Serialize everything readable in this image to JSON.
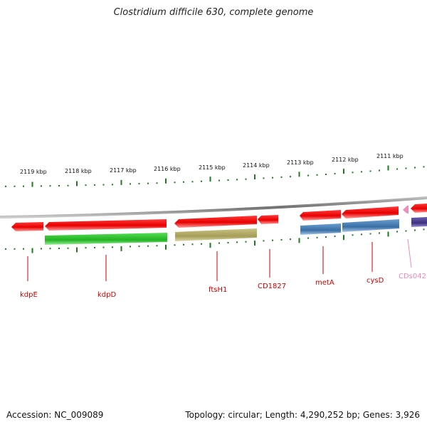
{
  "title": "Clostridium difficile 630, complete genome",
  "accession_text": "Accession: NC_009089",
  "summary_text": "Topology: circular; Length: 4,290,252 bp; Genes: 3,926",
  "ruler": {
    "labels": [
      "2119 kbp",
      "2118 kbp",
      "2117 kbp",
      "2116 kbp",
      "2115 kbp",
      "2114 kbp",
      "2113 kbp",
      "2112 kbp",
      "2111 kbp"
    ],
    "tick_color": "#1e7a1e"
  },
  "genes": [
    {
      "name": "kdpE",
      "color": "#cc0000"
    },
    {
      "name": "kdpD",
      "color": "#cc0000"
    },
    {
      "name": "ftsH1",
      "color": "#cc0000"
    },
    {
      "name": "CD1827",
      "color": "#cc0000"
    },
    {
      "name": "metA",
      "color": "#cc0000"
    },
    {
      "name": "cysD",
      "color": "#cc0000"
    },
    {
      "name": "CDs042",
      "color": "#ee88bb"
    }
  ],
  "colors": {
    "backbone": "#808080",
    "cds": "#ee1111",
    "kdpD_product": "#33cc33",
    "ftsH1_product": "#b5ad6a",
    "metA_cysD_product": "#4a80b8",
    "purple_feature": "#4a3d8f",
    "pink_feature": "#f08cc0"
  }
}
